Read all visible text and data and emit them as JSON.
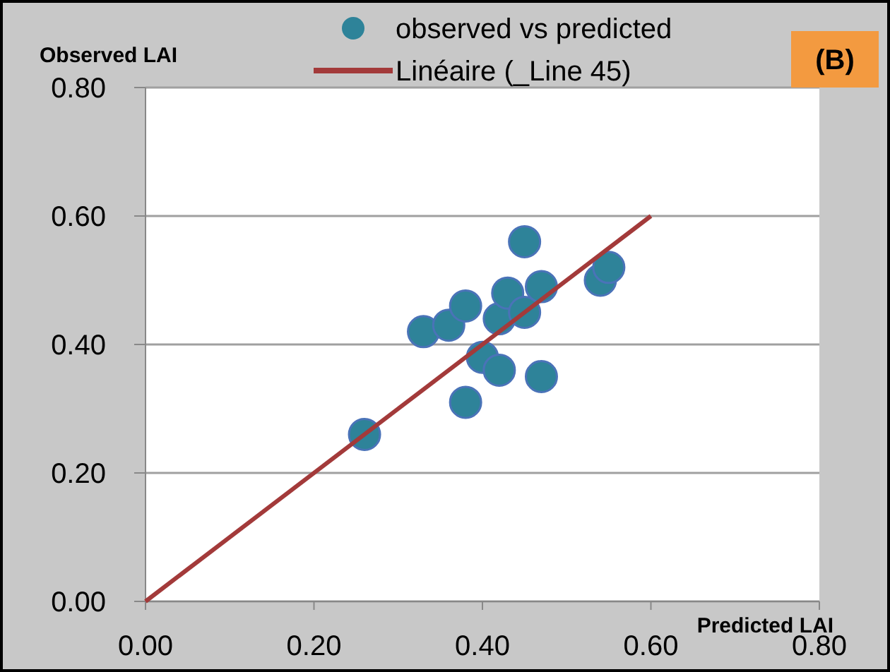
{
  "chart_data": {
    "type": "scatter",
    "xlabel": "Predicted LAI",
    "ylabel": "Observed LAI",
    "annotations": [
      "(B)"
    ],
    "xlim": [
      0,
      0.8
    ],
    "ylim": [
      0,
      0.8
    ],
    "xticks": [
      {
        "value": 0,
        "label": "0.00"
      },
      {
        "value": 0.2,
        "label": "0.20"
      },
      {
        "value": 0.4,
        "label": "0.40"
      },
      {
        "value": 0.6,
        "label": "0.60"
      },
      {
        "value": 0.8,
        "label": "0.80"
      }
    ],
    "yticks": [
      {
        "value": 0,
        "label": "0.00"
      },
      {
        "value": 0.2,
        "label": "0.20"
      },
      {
        "value": 0.4,
        "label": "0.40"
      },
      {
        "value": 0.6,
        "label": "0.60"
      },
      {
        "value": 0.8,
        "label": "0.80"
      }
    ],
    "grid": "y",
    "legend": "top",
    "marker": "circle",
    "series": [
      {
        "name": "observed vs predicted",
        "color": "#2e8399",
        "x": [
          0.26,
          0.33,
          0.36,
          0.38,
          0.38,
          0.4,
          0.42,
          0.42,
          0.43,
          0.45,
          0.45,
          0.47,
          0.47,
          0.54,
          0.55
        ],
        "values": [
          0.26,
          0.42,
          0.43,
          0.46,
          0.31,
          0.38,
          0.36,
          0.44,
          0.48,
          0.45,
          0.56,
          0.49,
          0.35,
          0.5,
          0.52
        ]
      },
      {
        "name": "Linéaire (_Line 45)",
        "type": "line",
        "color": "#a33a3a",
        "x": [
          0,
          0.6
        ],
        "values": [
          0,
          0.6
        ],
        "marker": "none",
        "line_style": "solid"
      }
    ]
  }
}
